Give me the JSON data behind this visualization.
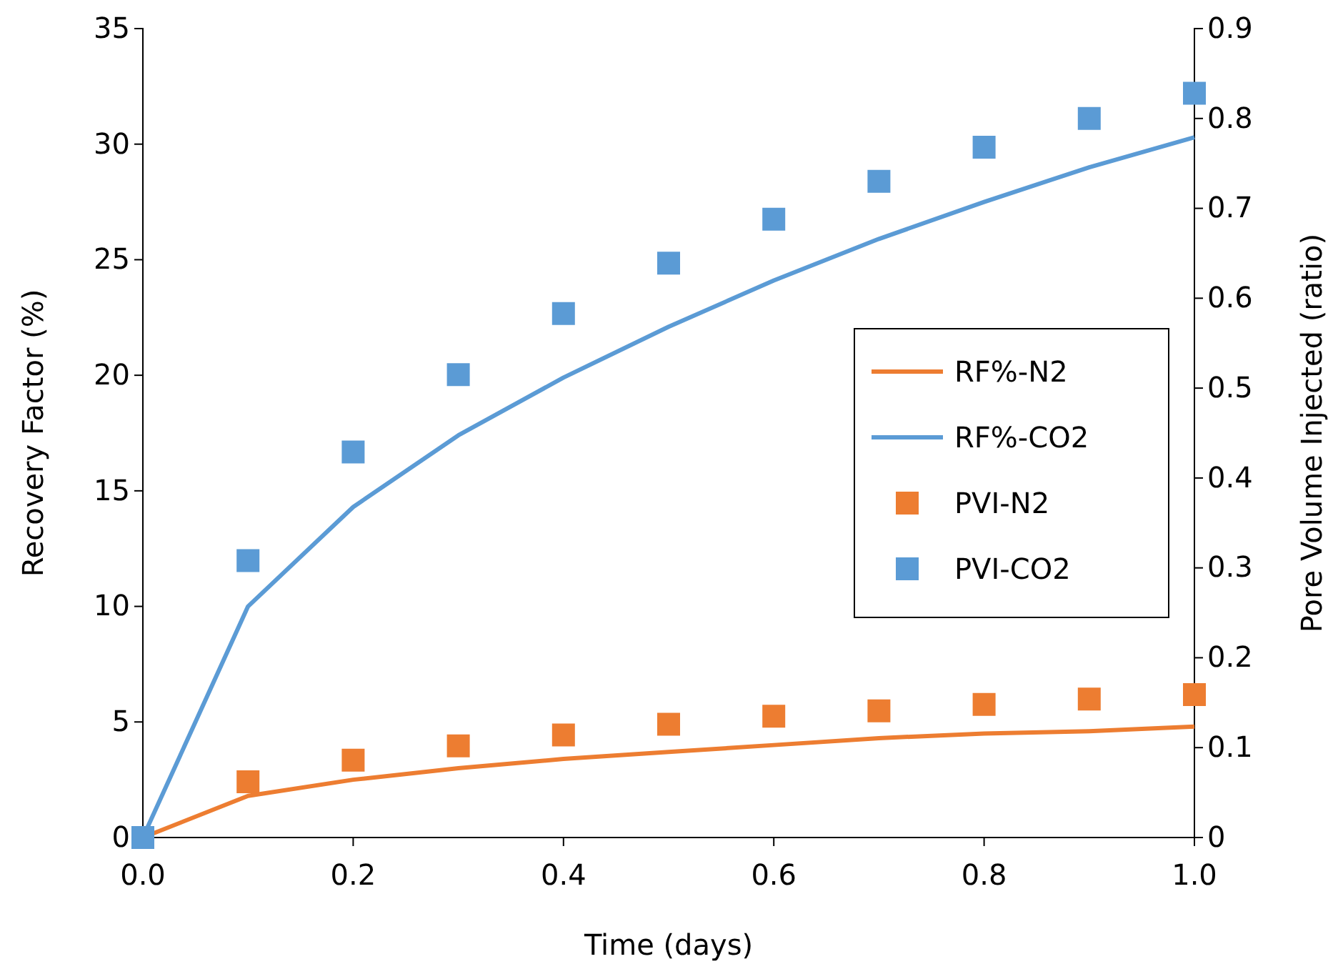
{
  "chart_data": {
    "type": "line",
    "xlabel": "Time (days)",
    "ylabel": "Recovery Factor (%)",
    "y2label": "Pore Volume Injected (ratio)",
    "x": [
      0,
      0.1,
      0.2,
      0.3,
      0.4,
      0.5,
      0.6,
      0.7,
      0.8,
      0.9,
      1.0
    ],
    "xlim": [
      0,
      1
    ],
    "xticks": [
      {
        "value": 0,
        "label": "0.0"
      },
      {
        "value": 0.2,
        "label": "0.2"
      },
      {
        "value": 0.4,
        "label": "0.4"
      },
      {
        "value": 0.6,
        "label": "0.6"
      },
      {
        "value": 0.8,
        "label": "0.8"
      },
      {
        "value": 1,
        "label": "1.0"
      }
    ],
    "ylim": [
      0,
      35
    ],
    "yticks": [
      0,
      5,
      10,
      15,
      20,
      25,
      30,
      35
    ],
    "y2lim": [
      0,
      0.9
    ],
    "y2ticks": [
      0,
      0.1,
      0.2,
      0.3,
      0.4,
      0.5,
      0.6,
      0.7,
      0.8,
      0.9
    ],
    "grid": false,
    "legend": "right",
    "series": [
      {
        "name": "RF%-N2",
        "color": "#ed7d31",
        "marker": "none",
        "line_style": "solid",
        "values": [
          0,
          1.8,
          2.5,
          3.0,
          3.4,
          3.7,
          4.0,
          4.3,
          4.5,
          4.6,
          4.8
        ]
      },
      {
        "name": "RF%-CO2",
        "color": "#5b9bd5",
        "marker": "none",
        "line_style": "solid",
        "values": [
          0,
          10,
          14.3,
          17.4,
          19.9,
          22.1,
          24.1,
          25.9,
          27.5,
          29.0,
          30.3
        ]
      },
      {
        "name": "PVI-N2",
        "type": "scatter",
        "axis": "y2",
        "color": "#ed7d31",
        "marker": "square",
        "values": [
          null,
          0.062,
          0.086,
          0.102,
          0.114,
          0.126,
          0.135,
          0.141,
          0.148,
          0.154,
          0.159
        ]
      },
      {
        "name": "PVI-CO2",
        "type": "scatter",
        "axis": "y2",
        "color": "#5b9bd5",
        "marker": "square",
        "values": [
          0,
          0.308,
          0.429,
          0.515,
          0.583,
          0.639,
          0.688,
          0.73,
          0.768,
          0.8,
          0.828
        ]
      }
    ]
  }
}
